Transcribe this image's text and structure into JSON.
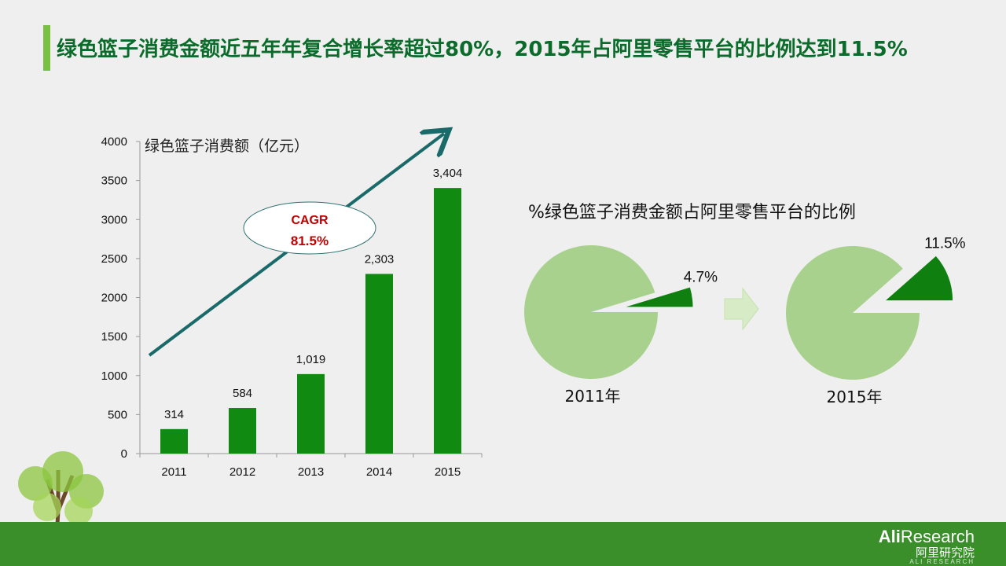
{
  "title": "绿色篮子消费金额近五年年复合增长率超过80%，2015年占阿里零售平台的比例达到11.5%",
  "chart_data": [
    {
      "type": "bar",
      "ylabel": "绿色篮子消费额（亿元）",
      "categories": [
        "2011",
        "2012",
        "2013",
        "2014",
        "2015"
      ],
      "values": [
        314,
        584,
        1019,
        2303,
        3404
      ],
      "value_labels": [
        "314",
        "584",
        "1,019",
        "2,303",
        "3,404"
      ],
      "ylim": [
        0,
        4000
      ],
      "yticks": [
        "0",
        "500",
        "1000",
        "1500",
        "2000",
        "2500",
        "3000",
        "3500",
        "4000"
      ],
      "bar_color": "#118a11",
      "annotation": {
        "label": "CAGR",
        "value": "81.5%",
        "color": "#c00000"
      }
    },
    {
      "type": "pie",
      "title": "%绿色篮子消费金额占阿里零售平台的比例",
      "pies": [
        {
          "year_label": "2011年",
          "share": 4.7,
          "share_label": "4.7%"
        },
        {
          "year_label": "2015年",
          "share": 11.5,
          "share_label": "11.5%"
        }
      ],
      "main_color": "#a9d18e",
      "highlight_color": "#0f7f0f"
    }
  ],
  "brand": {
    "name_bold": "Ali",
    "name": "Research",
    "cn": "阿里研究院",
    "en": "ALI RESEARCH"
  }
}
